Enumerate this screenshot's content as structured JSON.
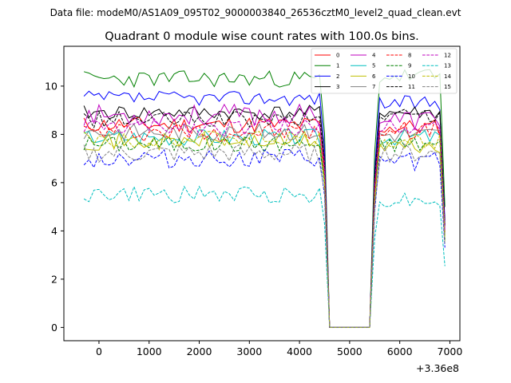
{
  "figure": {
    "suptitle": "Data file: modeM0/AS1A09_095T02_9000003840_26536cztM0_level2_quad_clean.evt"
  },
  "chart_data": {
    "type": "line",
    "title": "Quadrant 0 module wise count rates with 100.0s bins.",
    "xlabel": "",
    "ylabel": "",
    "x_offset_label": "+3.36e8",
    "xlim": [
      -700,
      7200
    ],
    "ylim": [
      -0.55,
      11.65
    ],
    "xticks": [
      0,
      1000,
      2000,
      3000,
      4000,
      5000,
      6000,
      7000
    ],
    "yticks": [
      0,
      2,
      4,
      6,
      8,
      10
    ],
    "gap": {
      "start": 4600,
      "end": 5400,
      "value": 0
    },
    "x": [
      -300,
      -200,
      -100,
      0,
      100,
      200,
      300,
      400,
      500,
      600,
      700,
      800,
      900,
      1000,
      1100,
      1200,
      1300,
      1400,
      1500,
      1600,
      1700,
      1800,
      1900,
      2000,
      2100,
      2200,
      2300,
      2400,
      2500,
      2600,
      2700,
      2800,
      2900,
      3000,
      3100,
      3200,
      3300,
      3400,
      3500,
      3600,
      3700,
      3800,
      3900,
      4000,
      4100,
      4200,
      4300,
      4400,
      4500,
      4600,
      5400,
      5500,
      5600,
      5700,
      5800,
      5900,
      6000,
      6100,
      6200,
      6300,
      6400,
      6500,
      6600,
      6700,
      6800,
      6900
    ],
    "legend_columns": 4,
    "series": [
      {
        "name": "0",
        "color": "#ff0000",
        "dash": "solid",
        "mean": 8.4,
        "amp": 0.35,
        "recover": 8.3,
        "seed": 11
      },
      {
        "name": "1",
        "color": "#008000",
        "dash": "solid",
        "mean": 10.3,
        "amp": 0.35,
        "recover": 10.4,
        "seed": 23
      },
      {
        "name": "2",
        "color": "#0000ff",
        "dash": "solid",
        "mean": 9.5,
        "amp": 0.3,
        "recover": 9.3,
        "seed": 37
      },
      {
        "name": "3",
        "color": "#000000",
        "dash": "solid",
        "mean": 8.9,
        "amp": 0.3,
        "recover": 8.9,
        "seed": 41
      },
      {
        "name": "4",
        "color": "#bf00bf",
        "dash": "solid",
        "mean": 8.8,
        "amp": 0.45,
        "recover": 8.6,
        "seed": 53
      },
      {
        "name": "5",
        "color": "#00bfbf",
        "dash": "solid",
        "mean": 7.9,
        "amp": 0.35,
        "recover": 7.9,
        "seed": 67
      },
      {
        "name": "6",
        "color": "#bfbf00",
        "dash": "solid",
        "mean": 7.7,
        "amp": 0.35,
        "recover": 7.5,
        "seed": 71
      },
      {
        "name": "7",
        "color": "#808080",
        "dash": "solid",
        "mean": 8.1,
        "amp": 0.35,
        "recover": 8.0,
        "seed": 83
      },
      {
        "name": "8",
        "color": "#ff0000",
        "dash": "dashed",
        "mean": 8.1,
        "amp": 0.4,
        "recover": 8.2,
        "seed": 97
      },
      {
        "name": "9",
        "color": "#008000",
        "dash": "dashed",
        "mean": 7.6,
        "amp": 0.35,
        "recover": 7.6,
        "seed": 101
      },
      {
        "name": "10",
        "color": "#0000ff",
        "dash": "dashed",
        "mean": 7.0,
        "amp": 0.4,
        "recover": 6.9,
        "seed": 113
      },
      {
        "name": "11",
        "color": "#000000",
        "dash": "dashed",
        "mean": 8.6,
        "amp": 0.35,
        "recover": 8.8,
        "seed": 127
      },
      {
        "name": "12",
        "color": "#bf00bf",
        "dash": "dashed",
        "mean": 8.3,
        "amp": 0.35,
        "recover": 8.4,
        "seed": 131
      },
      {
        "name": "13",
        "color": "#00bfbf",
        "dash": "dashed",
        "mean": 5.5,
        "amp": 0.35,
        "recover": 5.3,
        "seed": 149
      },
      {
        "name": "14",
        "color": "#bfbf00",
        "dash": "dashed",
        "mean": 7.8,
        "amp": 0.35,
        "recover": 7.7,
        "seed": 151
      },
      {
        "name": "15",
        "color": "#808080",
        "dash": "dashed",
        "mean": 7.2,
        "amp": 0.4,
        "recover": 7.2,
        "seed": 163
      }
    ]
  }
}
